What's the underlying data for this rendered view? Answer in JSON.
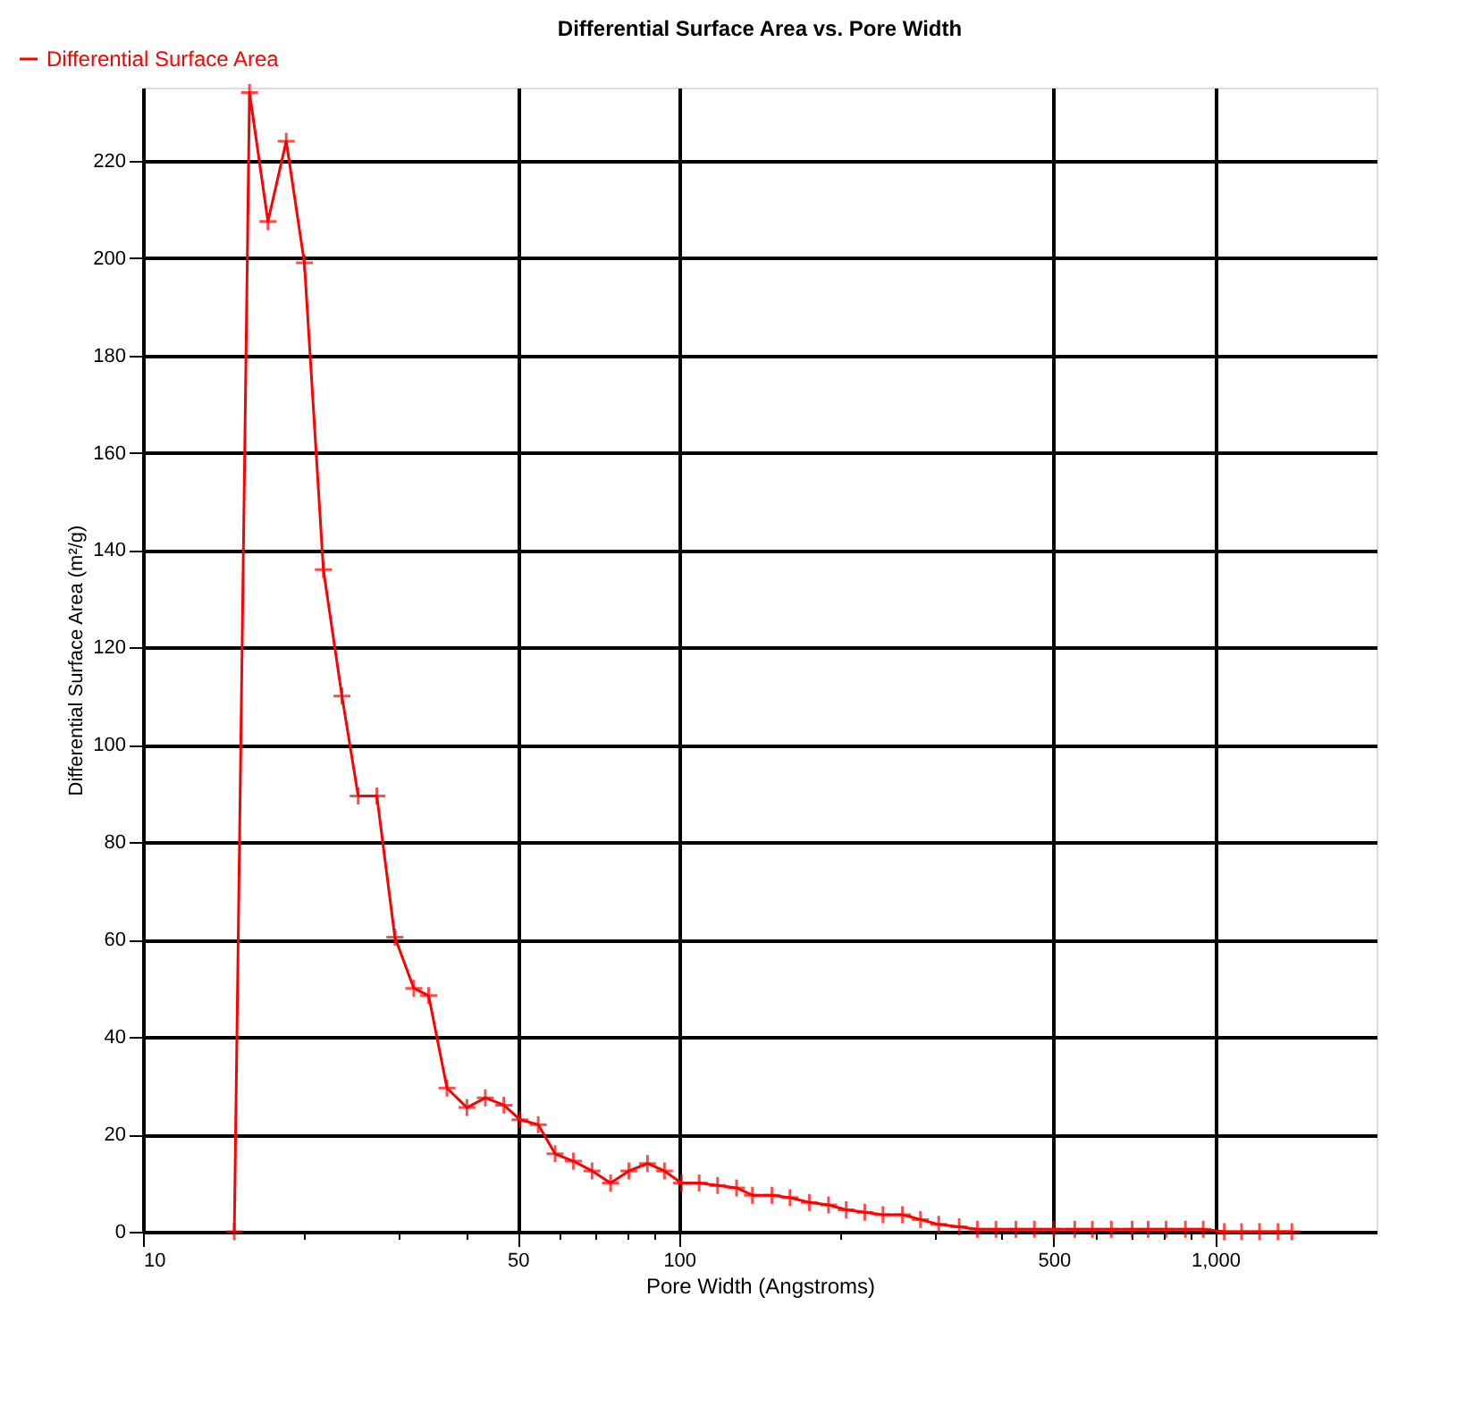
{
  "chart_data": {
    "type": "line",
    "title": "Differential Surface Area vs. Pore Width",
    "xlabel": "Pore Width (Angstroms)",
    "ylabel": "Differential Surface Area (m²/g)",
    "series": [
      {
        "name": "Differential Surface Area",
        "color": "#ff0000",
        "x": [
          14.8,
          15.8,
          17.1,
          18.5,
          20.0,
          21.7,
          23.5,
          25.2,
          27.3,
          29.5,
          32.0,
          34.1,
          36.9,
          40.2,
          43.5,
          47.1,
          50.5,
          54.6,
          58.7,
          63.5,
          68.8,
          74.5,
          80.6,
          87.3,
          93.9,
          101,
          109,
          118,
          128,
          137,
          149,
          161,
          175,
          190,
          205,
          222,
          240,
          261,
          282,
          305,
          333,
          360,
          390,
          425,
          460,
          500,
          547,
          590,
          640,
          700,
          750,
          810,
          880,
          950,
          1040,
          1120,
          1210,
          1310,
          1390
        ],
        "values": [
          0,
          234,
          207.5,
          224,
          199,
          136,
          110,
          89.5,
          89.5,
          60.5,
          50,
          48.5,
          29.5,
          25.5,
          27.5,
          26,
          23,
          22,
          16,
          14.5,
          12.5,
          10,
          12.5,
          14,
          12.5,
          10,
          10,
          9.5,
          9,
          7.5,
          7.5,
          7,
          6,
          5.5,
          4.5,
          4,
          3.5,
          3.5,
          2.5,
          1.5,
          1,
          0.5,
          0.5,
          0.5,
          0.5,
          0.5,
          0.5,
          0.5,
          0.5,
          0.5,
          0.5,
          0.5,
          0.5,
          0.5,
          0,
          0,
          0,
          0,
          0
        ]
      }
    ],
    "log": "x",
    "xlim": [
      10,
      2000
    ],
    "ylim": [
      0,
      235
    ],
    "xticks": [
      10,
      {
        "value": 20,
        "label": null
      },
      {
        "value": 30,
        "label": null
      },
      {
        "value": 40,
        "label": null
      },
      50,
      {
        "value": 60,
        "label": null
      },
      {
        "value": 70,
        "label": null
      },
      {
        "value": 80,
        "label": null
      },
      {
        "value": 90,
        "label": null
      },
      100,
      {
        "value": 200,
        "label": null
      },
      {
        "value": 300,
        "label": null
      },
      {
        "value": 400,
        "label": null
      },
      500,
      {
        "value": 600,
        "label": null
      },
      {
        "value": 700,
        "label": null
      },
      {
        "value": 800,
        "label": null
      },
      {
        "value": 900,
        "label": null
      },
      {
        "value": 1000,
        "label": "1,000"
      }
    ],
    "yticks": [
      0,
      20,
      40,
      60,
      80,
      100,
      120,
      140,
      160,
      180,
      200,
      220
    ],
    "grid": true,
    "legend": "top left",
    "marker": "cross",
    "line_style": "solid"
  }
}
